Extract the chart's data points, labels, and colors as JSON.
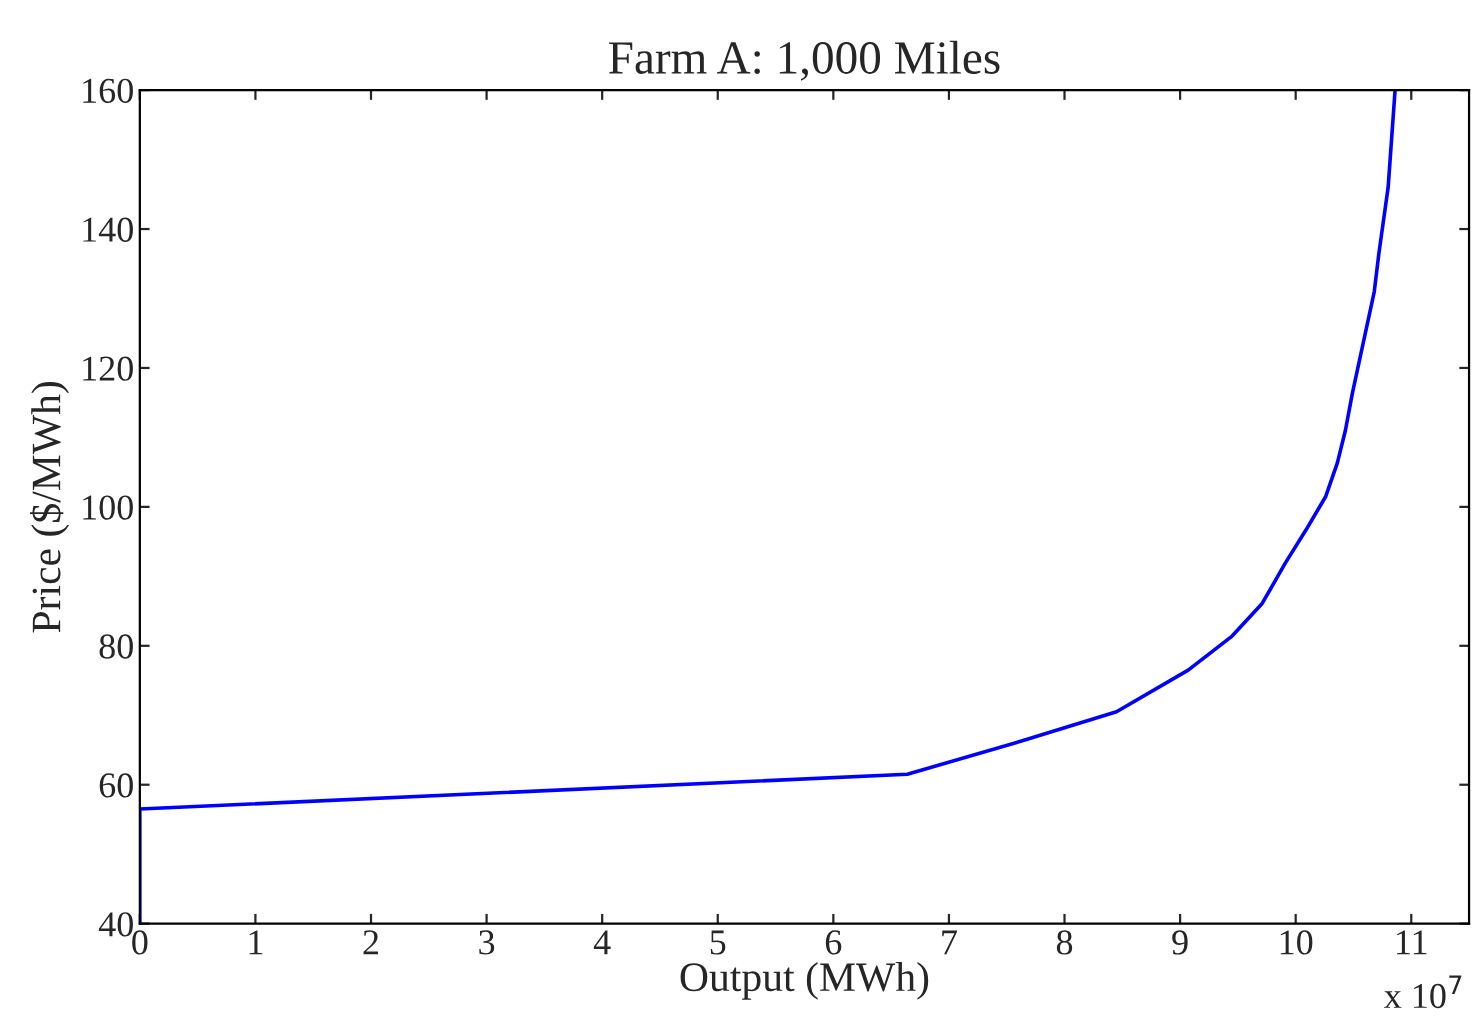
{
  "chart_data": {
    "type": "line",
    "title": "Farm A: 1,000 Miles",
    "xlabel": "Output (MWh)",
    "ylabel": "Price ($/MWh)",
    "annotations": [
      "x 10$^{7}$"
    ],
    "series": [
      {
        "color": "#0000ff",
        "x": [
          0,
          0,
          6.64,
          7.67,
          8.45,
          9.07,
          9.45,
          9.71,
          9.91,
          10.09,
          10.26,
          10.36,
          10.43,
          10.49,
          10.68,
          10.72,
          10.8,
          10.86
        ],
        "values": [
          40,
          56.5,
          61.5,
          66.5,
          70.5,
          76.5,
          81.4,
          86.1,
          91.9,
          96.7,
          101.5,
          106.3,
          111,
          116.3,
          131,
          136.5,
          146,
          160
        ]
      }
    ],
    "xlim": [
      0,
      11.5
    ],
    "xticks": [
      0,
      1,
      2,
      3,
      4,
      5,
      6,
      7,
      8,
      9,
      10,
      11
    ],
    "ylim": [
      40,
      160
    ],
    "yticks": [
      40,
      60,
      80,
      100,
      120,
      140,
      160
    ],
    "grid": false,
    "legend": false,
    "marker": "none",
    "line_style": "solid"
  }
}
